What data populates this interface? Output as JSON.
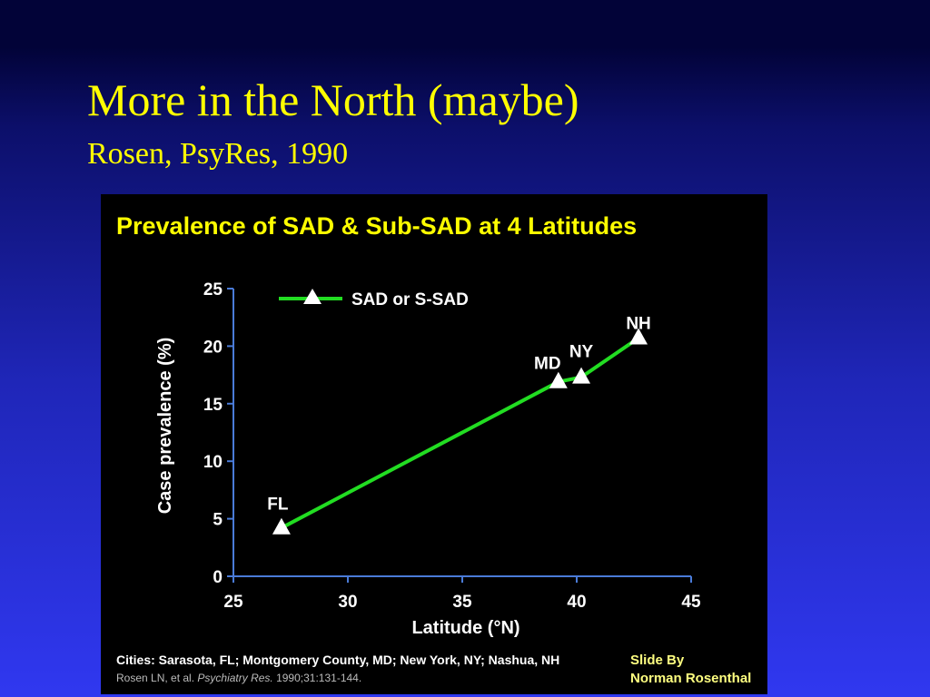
{
  "slide": {
    "title": "More in the North (maybe)",
    "subtitle": "Rosen, PsyRes, 1990",
    "credit_line1": "Slide  By",
    "credit_line2": "Norman Rosenthal"
  },
  "colors": {
    "background_top": "#020338",
    "background_bottom": "#3038f0",
    "title": "#ffff00",
    "chart_title": "#ffff00",
    "series_line": "#22dd22",
    "marker": "#ffffff",
    "axis": "#4a7bd8",
    "text": "#ffffff",
    "credit": "#ffff80"
  },
  "chart_data": {
    "type": "line",
    "title": "Prevalence of SAD & Sub-SAD at 4 Latitudes",
    "xlabel": "Latitude (°N)",
    "ylabel": "Case prevalence (%)",
    "xlim": [
      25,
      45
    ],
    "ylim": [
      0,
      25
    ],
    "xticks": [
      25,
      30,
      35,
      40,
      45
    ],
    "yticks": [
      0,
      5,
      10,
      15,
      20,
      25
    ],
    "grid": false,
    "legend_position": "top-left",
    "series": [
      {
        "name": "SAD or S-SAD",
        "marker": "triangle",
        "points": [
          {
            "label": "FL",
            "x": 27.1,
            "y": 4.2
          },
          {
            "label": "MD",
            "x": 39.2,
            "y": 16.9
          },
          {
            "label": "NY",
            "x": 40.2,
            "y": 17.3
          },
          {
            "label": "NH",
            "x": 42.7,
            "y": 20.7
          }
        ]
      }
    ],
    "footnote": {
      "cities": "Cities:  Sarasota, FL; Montgomery County, MD; New York, NY; Nashua, NH",
      "citation_authors": "Rosen LN, et al. ",
      "citation_journal": "Psychiatry Res.",
      "citation_rest": " 1990;31:131-144."
    }
  }
}
